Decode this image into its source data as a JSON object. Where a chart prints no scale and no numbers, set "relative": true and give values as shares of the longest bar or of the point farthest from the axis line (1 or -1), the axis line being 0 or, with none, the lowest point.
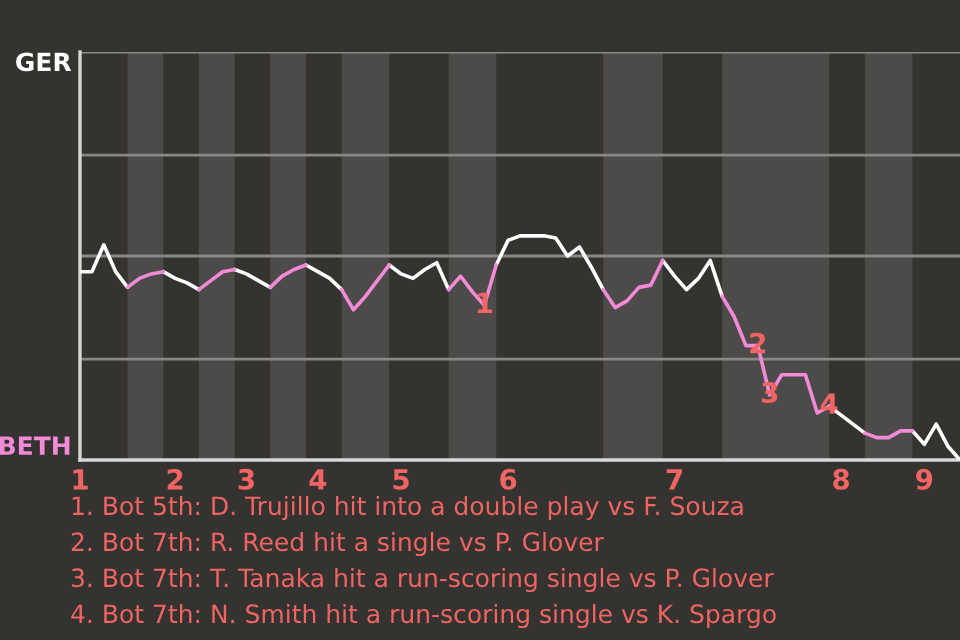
{
  "chart_data": {
    "type": "line",
    "relative": true,
    "categories": [
      "1",
      null,
      null,
      null,
      null,
      null,
      null,
      null,
      "2",
      null,
      null,
      null,
      null,
      null,
      "3",
      null,
      null,
      null,
      null,
      null,
      "4",
      null,
      null,
      null,
      null,
      null,
      null,
      "5",
      null,
      null,
      null,
      null,
      null,
      null,
      null,
      null,
      "6",
      null,
      null,
      null,
      null,
      null,
      null,
      null,
      null,
      null,
      null,
      null,
      null,
      null,
      "7",
      null,
      null,
      null,
      null,
      null,
      null,
      null,
      null,
      null,
      null,
      null,
      null,
      null,
      "8",
      null,
      null,
      null,
      null,
      null,
      null,
      "9",
      null,
      null,
      null
    ],
    "series": [
      {
        "color": "#ffffff",
        "values": [
          0.84,
          0.84,
          0.96,
          0.84,
          0.77,
          null,
          null,
          0.84,
          0.81,
          0.79,
          0.76,
          null,
          null,
          0.85,
          0.83,
          0.8,
          0.77,
          null,
          null,
          0.87,
          0.84,
          0.81,
          0.76,
          null,
          null,
          null,
          0.87,
          0.83,
          0.81,
          0.85,
          0.88,
          0.76,
          null,
          null,
          null,
          0.87,
          0.98,
          1,
          1,
          1,
          0.99,
          0.91,
          0.95,
          0.86,
          0.76,
          null,
          null,
          null,
          null,
          0.89,
          0.82,
          0.76,
          0.81,
          0.89,
          0.73,
          null,
          null,
          null,
          null,
          null,
          null,
          null,
          null,
          0.24,
          0.2,
          0.16,
          0.12,
          null,
          null,
          null,
          0.13,
          0.07,
          0.16,
          0.06,
          0
        ]
      },
      {
        "color": "#f28ad8",
        "values": [
          null,
          null,
          null,
          null,
          0.77,
          0.81,
          0.83,
          0.84,
          null,
          null,
          0.76,
          0.8,
          0.84,
          0.85,
          null,
          null,
          0.77,
          0.82,
          0.85,
          0.87,
          null,
          null,
          0.76,
          0.67,
          0.73,
          0.8,
          0.87,
          null,
          null,
          null,
          null,
          0.76,
          0.82,
          0.75,
          0.69,
          0.87,
          null,
          null,
          null,
          null,
          null,
          null,
          null,
          null,
          0.76,
          0.68,
          0.71,
          0.77,
          0.78,
          0.89,
          null,
          null,
          null,
          null,
          0.73,
          0.64,
          0.51,
          0.51,
          0.29,
          0.38,
          0.38,
          0.38,
          0.21,
          0.24,
          null,
          null,
          0.12,
          0.1,
          0.1,
          0.13,
          0.13,
          null,
          null,
          null,
          null
        ]
      }
    ],
    "ref_lines": [
      {
        "axis": "y",
        "value": 0.45,
        "color": "#8a8886"
      },
      {
        "axis": "y",
        "value": 0.91,
        "color": "#8a8886"
      },
      {
        "axis": "y",
        "value": 1.36,
        "color": "#8a8886"
      },
      {
        "axis": "y",
        "value": 1.82,
        "color": "#8a8886"
      }
    ],
    "line_style": "solid",
    "marker": "none",
    "annotations": [
      "GER",
      "BETH",
      {
        "text": "1",
        "y": 0.69
      },
      {
        "text": "2",
        "y": 0.51
      },
      {
        "text": "3",
        "y": 0.29
      },
      {
        "text": "4",
        "y": 0.24
      },
      "1. Bot 5th: D. Trujillo hit into a double play vs F. Souza",
      "2. Bot 7th: R. Reed hit a single vs P. Glover",
      "3. Bot 7th: T. Tanaka hit a run-scoring single vs P. Glover",
      "4. Bot 7th: N. Smith hit a run-scoring single vs K. Spargo"
    ]
  }
}
